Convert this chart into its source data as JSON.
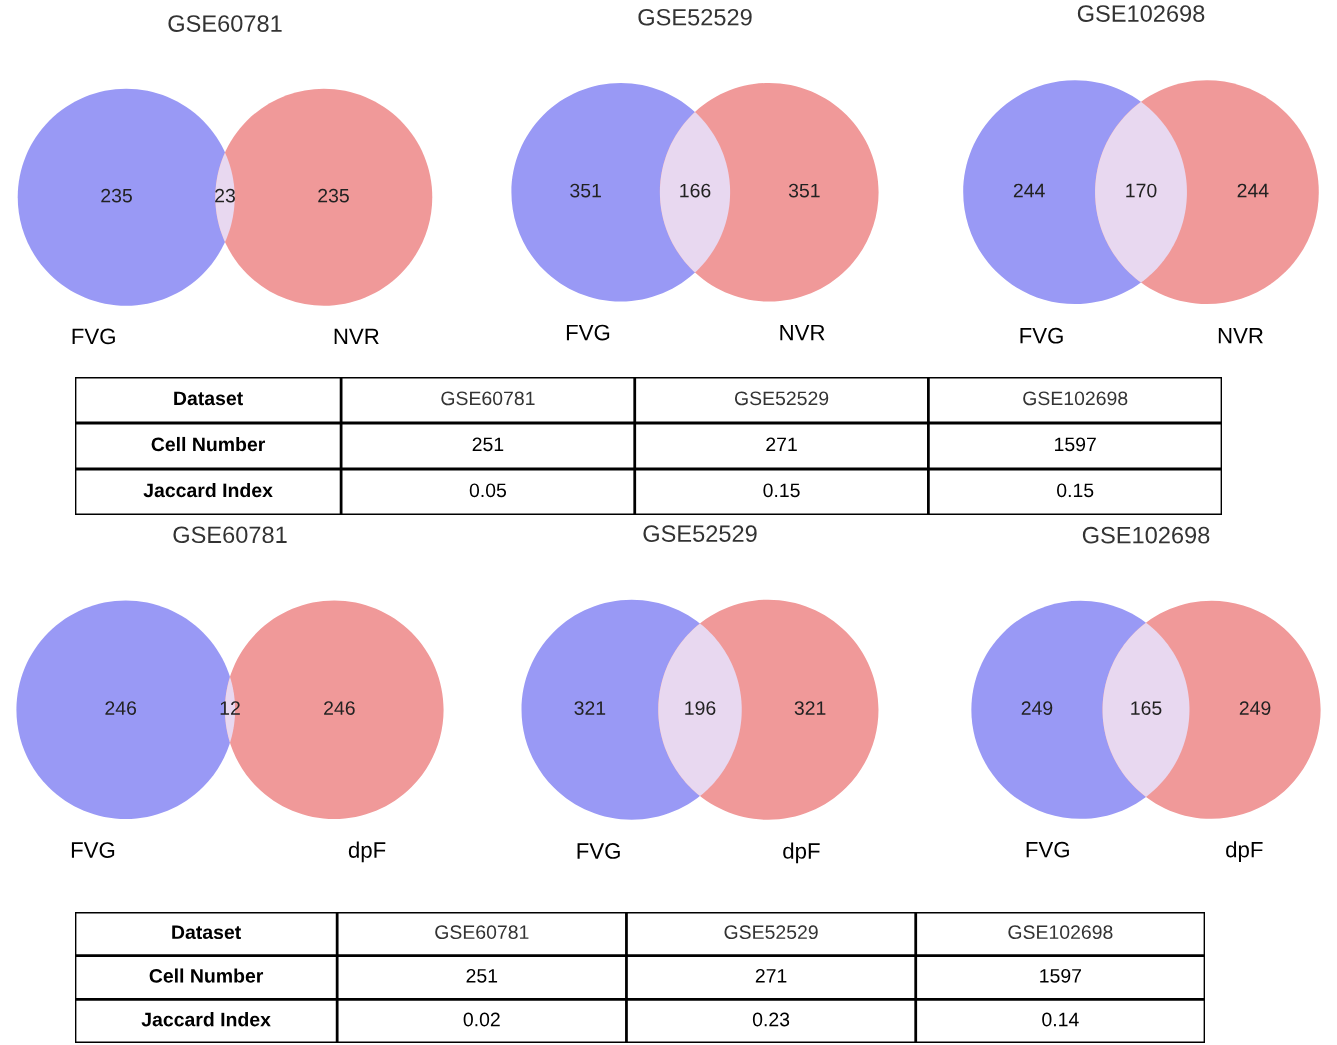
{
  "chart_data": [
    {
      "type": "other",
      "title": "GSE60781",
      "categories": [
        "FVG",
        null,
        "NVR"
      ],
      "values": [
        235,
        23,
        235
      ],
      "colors": [
        "#9999f5",
        "#e8d8f0",
        "#f09999"
      ],
      "data_labels": true
    },
    {
      "type": "other",
      "title": "GSE52529",
      "categories": [
        "FVG",
        null,
        "NVR"
      ],
      "values": [
        351,
        166,
        351
      ],
      "colors": [
        "#9999f5",
        "#e8d8f0",
        "#f09999"
      ],
      "data_labels": true
    },
    {
      "type": "other",
      "title": "GSE102698",
      "categories": [
        "FVG",
        null,
        "NVR"
      ],
      "values": [
        244,
        170,
        244
      ],
      "colors": [
        "#9999f5",
        "#e8d8f0",
        "#f09999"
      ],
      "data_labels": true
    },
    {
      "type": "other",
      "xlabel": "Dataset",
      "categories": [
        "GSE60781",
        "GSE52529",
        "GSE102698"
      ],
      "series": [
        {
          "name": "Cell Number",
          "values": [
            251,
            271,
            1597
          ]
        },
        {
          "name": "Jaccard Index",
          "values": [
            0.05,
            0.15,
            0.15
          ]
        }
      ],
      "data_labels": true
    },
    {
      "type": "other",
      "title": "GSE60781",
      "categories": [
        "FVG",
        null,
        "dpF"
      ],
      "values": [
        246,
        12,
        246
      ],
      "colors": [
        "#9999f5",
        "#e8d8f0",
        "#f09999"
      ],
      "data_labels": true
    },
    {
      "type": "other",
      "title": "GSE52529",
      "categories": [
        "FVG",
        null,
        "dpF"
      ],
      "values": [
        321,
        196,
        321
      ],
      "colors": [
        "#9999f5",
        "#e8d8f0",
        "#f09999"
      ],
      "data_labels": true
    },
    {
      "type": "other",
      "title": "GSE102698",
      "categories": [
        "FVG",
        null,
        "dpF"
      ],
      "values": [
        249,
        165,
        249
      ],
      "colors": [
        "#9999f5",
        "#e8d8f0",
        "#f09999"
      ],
      "data_labels": true
    },
    {
      "type": "other",
      "xlabel": "Dataset",
      "categories": [
        "GSE60781",
        "GSE52529",
        "GSE102698"
      ],
      "series": [
        {
          "name": "Cell Number",
          "values": [
            251,
            271,
            1597
          ]
        },
        {
          "name": "Jaccard Index",
          "values": [
            0.02,
            0.23,
            0.14
          ]
        }
      ],
      "data_labels": true
    }
  ]
}
